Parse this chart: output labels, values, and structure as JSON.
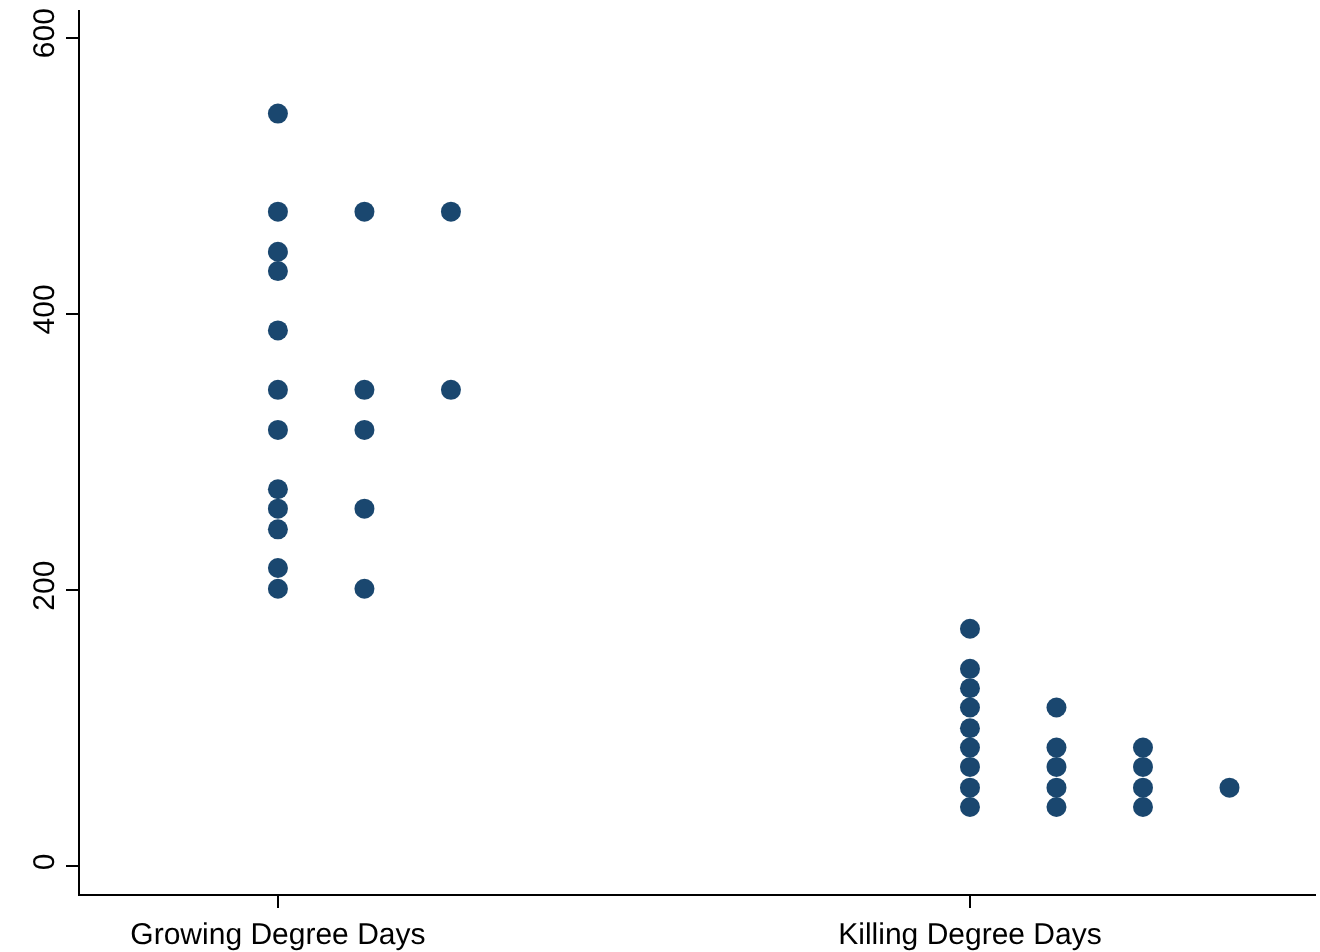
{
  "chart_data": {
    "type": "scatter",
    "categories": [
      "Growing Degree Days",
      "Killing Degree Days"
    ],
    "series": [
      {
        "color": "#1a476f",
        "x": [
          "Growing Degree Days",
          "Growing Degree Days",
          "Growing Degree Days",
          "Growing Degree Days",
          "Growing Degree Days",
          "Growing Degree Days",
          "Growing Degree Days",
          "Growing Degree Days",
          "Growing Degree Days",
          "Growing Degree Days",
          "Growing Degree Days",
          "Growing Degree Days",
          "Growing Degree Days",
          "Growing Degree Days",
          "Growing Degree Days",
          "Growing Degree Days",
          "Growing Degree Days",
          "Growing Degree Days",
          "Growing Degree Days",
          "Killing Degree Days",
          "Killing Degree Days",
          "Killing Degree Days",
          "Killing Degree Days",
          "Killing Degree Days",
          "Killing Degree Days",
          "Killing Degree Days",
          "Killing Degree Days",
          "Killing Degree Days",
          "Killing Degree Days",
          "Killing Degree Days",
          "Killing Degree Days",
          "Killing Degree Days",
          "Killing Degree Days",
          "Killing Degree Days",
          "Killing Degree Days",
          "Killing Degree Days",
          "Killing Degree Days",
          "Killing Degree Days"
        ],
        "values": [
          545,
          474,
          445,
          431,
          388,
          345,
          316,
          273,
          259,
          244,
          216,
          201,
          474,
          345,
          316,
          259,
          201,
          474,
          345,
          172,
          143,
          129,
          115,
          100,
          86,
          72,
          57,
          43,
          115,
          86,
          72,
          57,
          43,
          86,
          72,
          57,
          43,
          57
        ]
      }
    ],
    "ylim": [
      -20,
      620
    ],
    "yticks": [
      0,
      200,
      400,
      600
    ],
    "grid": false,
    "marker": "circle"
  }
}
